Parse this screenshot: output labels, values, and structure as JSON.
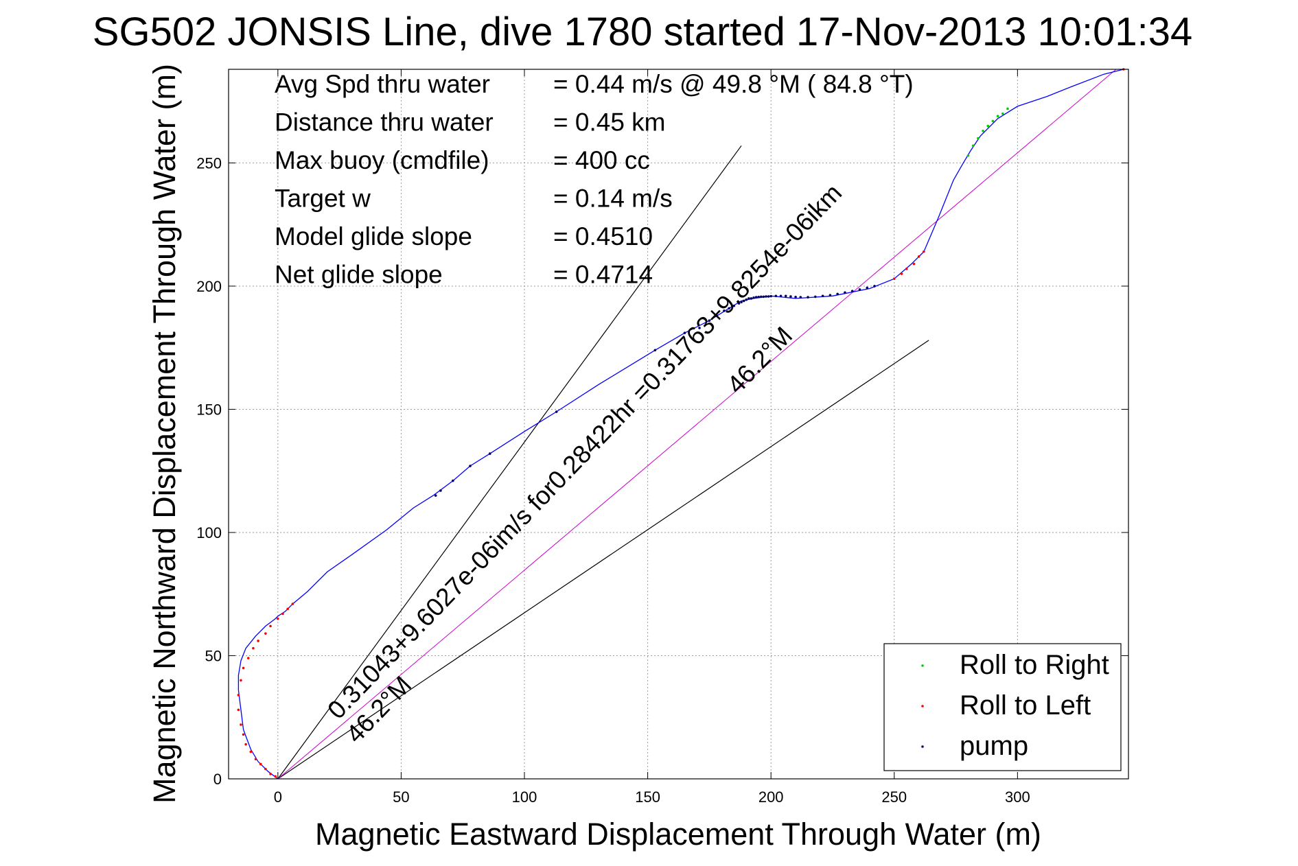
{
  "chart_data": {
    "type": "line",
    "title": "SG502 JONSIS Line, dive 1780 started 17-Nov-2013 10:01:34",
    "xlabel": "Magnetic Eastward Displacement Through Water (m)",
    "ylabel": "Magnetic Northward Displacement Through Water (m)",
    "xlim": [
      -20,
      345
    ],
    "ylim": [
      0,
      288
    ],
    "xticks": [
      "0",
      "50",
      "100",
      "150",
      "200",
      "250",
      "300"
    ],
    "yticks": [
      "0",
      "50",
      "100",
      "150",
      "200",
      "250"
    ],
    "grid": true,
    "legend_position": "bottom-right",
    "info": [
      {
        "label": "Avg Spd thru water",
        "value": "=  0.44 m/s @  49.8 °M ( 84.8 °T)"
      },
      {
        "label": "Distance thru water",
        "value": "=  0.45 km"
      },
      {
        "label": "Max buoy (cmdfile)",
        "value": "= 400 cc"
      },
      {
        "label": "Target w",
        "value": "= 0.14 m/s"
      },
      {
        "label": "Model glide slope",
        "value": "= 0.4510"
      },
      {
        "label": "Net glide slope",
        "value": "= 0.4714"
      }
    ],
    "annotations": [
      {
        "text": "0.31043+9.6027e-06im/s for0.28422hr =0.31763+9.8254e-06ikm",
        "angle_deg": 46.2
      },
      {
        "text": "46.2°M",
        "angle_deg": 46.2
      },
      {
        "text": "46.2°M",
        "angle_deg": 46.2
      }
    ],
    "track": {
      "color": "#0000ff",
      "x": [
        0,
        -4,
        -8,
        -11,
        -14,
        -15,
        -16,
        -16,
        -15,
        -13,
        -9,
        -5,
        -1,
        0,
        3,
        6,
        12,
        20,
        30,
        44,
        55,
        63,
        71,
        78,
        86,
        100,
        113,
        130,
        153,
        165,
        175,
        183,
        188,
        193,
        200,
        210,
        225,
        240,
        250,
        257,
        262,
        268,
        274,
        278,
        281,
        285,
        292,
        300,
        312,
        322,
        335,
        343
      ],
      "y": [
        0,
        3,
        7,
        12,
        20,
        28,
        36,
        42,
        48,
        53,
        58,
        62,
        65,
        66,
        68,
        71,
        76,
        84,
        91,
        101,
        110,
        115,
        121,
        127,
        132,
        141,
        149,
        160,
        174,
        181,
        186,
        191,
        194,
        195,
        196,
        195,
        196,
        199,
        203,
        209,
        214,
        228,
        243,
        250,
        255,
        261,
        268,
        273,
        277,
        281,
        286,
        288
      ]
    },
    "guide_lines": [
      {
        "x": [
          0,
          188
        ],
        "y": [
          0,
          257
        ]
      },
      {
        "x": [
          0,
          264
        ],
        "y": [
          0,
          178
        ]
      },
      {
        "x": [
          0,
          340
        ],
        "y": [
          0,
          288
        ],
        "color": "#cc00cc"
      }
    ],
    "series": [
      {
        "name": "Roll to Right",
        "color": "#00cc00",
        "x": [
          280,
          282,
          284,
          286,
          288,
          290,
          292,
          294,
          296
        ],
        "y": [
          253,
          257,
          260,
          263,
          265,
          267,
          269,
          270,
          272
        ]
      },
      {
        "name": "Roll to Left",
        "color": "#ff0000",
        "x": [
          -1,
          -3,
          -5,
          -7,
          -9,
          -11,
          -13,
          -14,
          -15,
          -16,
          -16,
          -15,
          -14,
          -12,
          -10,
          -8,
          -5,
          -3,
          0,
          2,
          4,
          6,
          250,
          253,
          255,
          258,
          260,
          262,
          343
        ],
        "y": [
          1,
          2,
          4,
          6,
          8,
          11,
          14,
          18,
          22,
          28,
          34,
          40,
          45,
          49,
          53,
          56,
          59,
          62,
          65,
          67,
          69,
          71,
          203,
          205,
          207,
          209,
          212,
          214,
          288
        ]
      },
      {
        "name": "pump",
        "color": "#000066",
        "x": [
          64,
          66,
          71,
          78,
          86,
          113,
          153,
          165,
          171,
          175,
          178,
          181,
          183,
          185,
          187,
          188,
          189,
          190,
          191,
          192,
          193,
          194,
          195,
          196,
          197,
          198,
          199,
          200,
          202,
          204,
          206,
          208,
          210,
          212,
          215,
          218,
          221,
          224,
          227,
          230,
          233,
          236,
          239,
          242
        ],
        "y": [
          115,
          117,
          121,
          127,
          132,
          149,
          174,
          181,
          183,
          186,
          188,
          190,
          191,
          192,
          193,
          193.5,
          194,
          194.5,
          195,
          195,
          195.3,
          195.5,
          195.6,
          195.7,
          195.7,
          195.8,
          195.8,
          195.9,
          196,
          196,
          196,
          195.8,
          195.6,
          195.5,
          195.5,
          195.7,
          196,
          196.3,
          196.8,
          197.4,
          198,
          198.6,
          199.3,
          200
        ]
      }
    ]
  }
}
